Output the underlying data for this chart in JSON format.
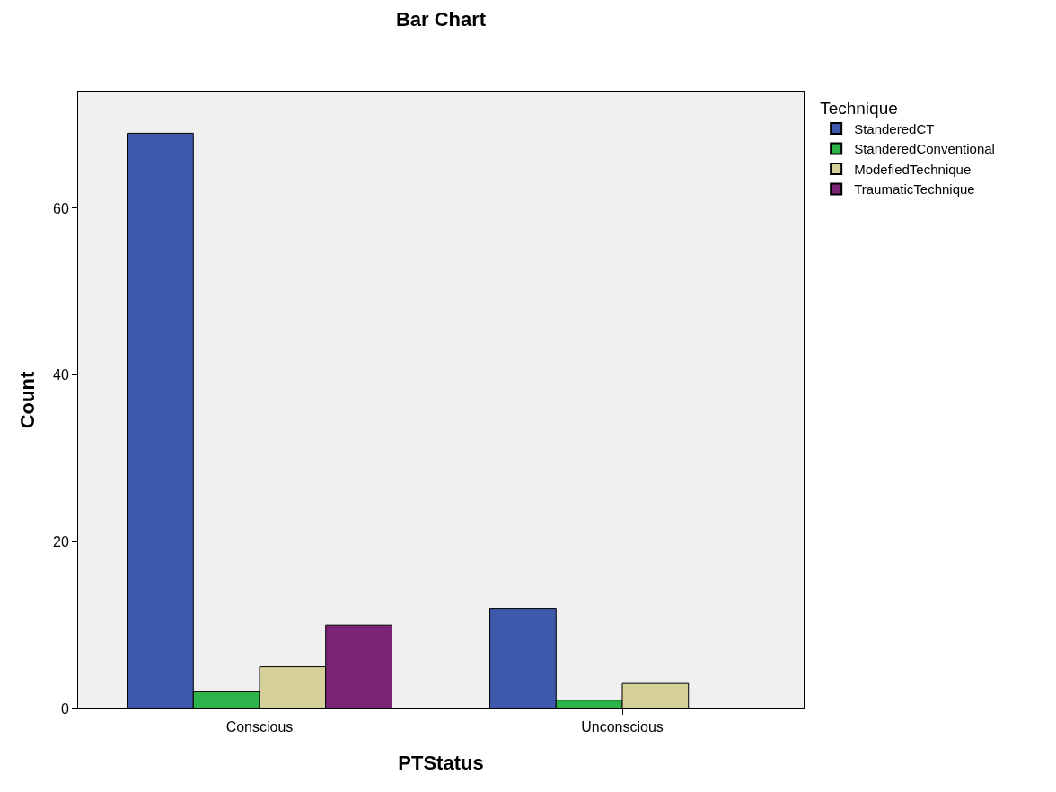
{
  "chart_data": {
    "type": "bar",
    "title": "Bar Chart",
    "xlabel": "PTStatus",
    "ylabel": "Count",
    "legend_title": "Technique",
    "categories": [
      "Conscious",
      "Unconscious"
    ],
    "series": [
      {
        "name": "StanderedCT",
        "color": "#3e58ac",
        "values": [
          69,
          12
        ]
      },
      {
        "name": "StanderedConventional",
        "color": "#2cb34a",
        "values": [
          2,
          1
        ]
      },
      {
        "name": "ModefiedTechnique",
        "color": "#d5cf99",
        "values": [
          5,
          3
        ]
      },
      {
        "name": "TraumaticTechnique",
        "color": "#7b2476",
        "values": [
          10,
          0
        ]
      }
    ],
    "ylim": [
      0,
      74
    ],
    "yticks": [
      0,
      20,
      40,
      60
    ],
    "grid": false,
    "legend": "top right"
  }
}
